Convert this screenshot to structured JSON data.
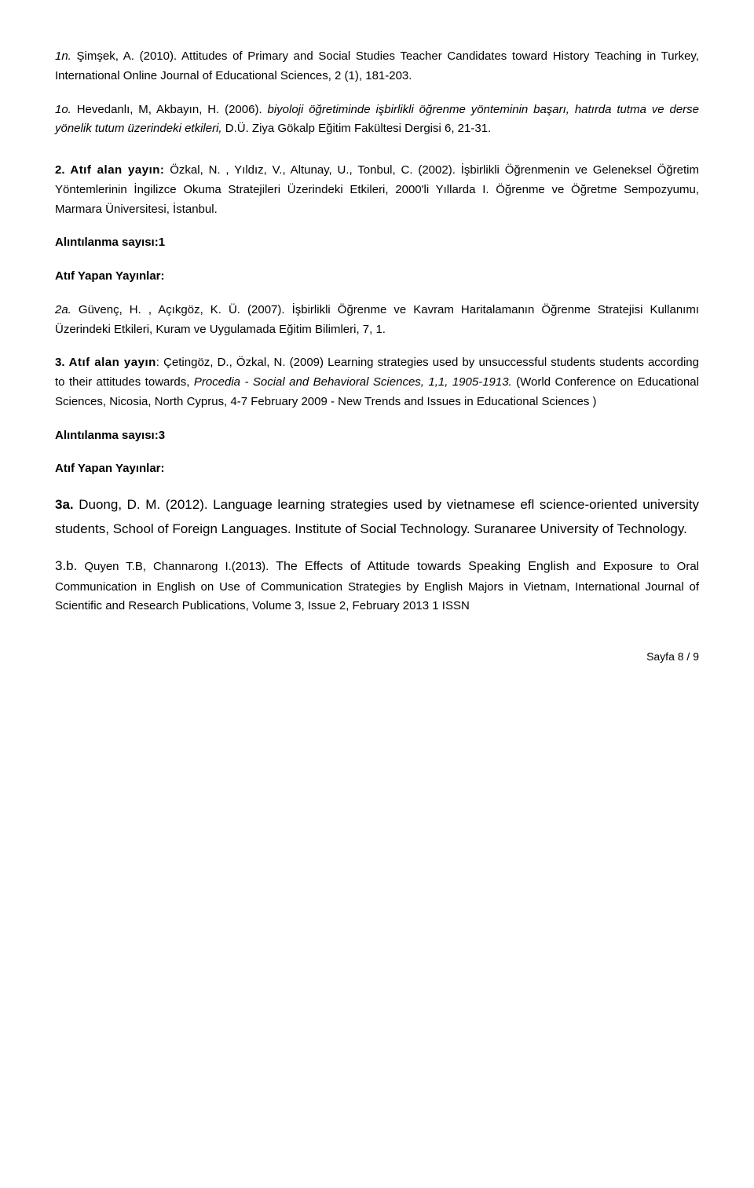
{
  "p1": {
    "prefix_italic": "1n.",
    "text": " Şimşek, A. (2010). Attitudes of Primary and Social Studies Teacher Candidates toward History Teaching in Turkey, International Online Journal of Educational Sciences, 2 (1), 181-203."
  },
  "p2": {
    "prefix_italic": "1o.",
    "part1": " Hevedanlı, M, Akbayın, H. (2006). ",
    "part2_italic": "biyoloji öğretiminde işbirlikli öğrenme yönteminin başarı, hatırda tutma ve derse yönelik tutum üzerindeki etkileri,",
    "part3": " D.Ü. Ziya Gökalp Eğitim Fakültesi Dergisi 6, 21-31."
  },
  "p3": {
    "num_bold": "2.",
    "label_bold": "Atıf alan yayın:",
    "text": " Özkal, N. , Yıldız, V., Altunay, U., Tonbul, C. (2002). İşbirlikli Öğrenmenin ve Geleneksel Öğretim Yöntemlerinin İngilizce Okuma Stratejileri Üzerindeki Etkileri, 2000'li Yıllarda I. Öğrenme ve Öğretme Sempozyumu, Marmara Üniversitesi, İstanbul."
  },
  "alinti1": "Alıntılanma sayısı:1",
  "atif_yapan1": "Atıf Yapan Yayınlar:",
  "p4": {
    "prefix_italic": "2a.",
    "text": " Güvenç, H. , Açıkgöz, K. Ü. (2007). İşbirlikli Öğrenme ve Kavram Haritalamanın Öğrenme Stratejisi Kullanımı Üzerindeki Etkileri, Kuram ve Uygulamada Eğitim Bilimleri, 7, 1."
  },
  "p5": {
    "num_bold": "3.",
    "label_bold": "Atıf alan yayın",
    "part1": ": Çetingöz, D., Özkal, N. (2009) Learning strategies used by unsuccessful students students according to their attitudes towards, ",
    "part2_italic": "Procedia - Social and Behavioral Sciences, 1,1, 1905-1913.",
    "part3": " (World Conference on Educational Sciences, Nicosia, North Cyprus, 4-7 February 2009 - New Trends and Issues in Educational Sciences )"
  },
  "alinti3": "Alıntılanma sayısı:3",
  "atif_yapan2": "Atıf Yapan Yayınlar:",
  "p6": {
    "prefix_bold": "3a.",
    "text": " Duong, D. M. (2012). Language learning strategies used by vietnamese efl science-oriented university students, School of Foreign Languages. Institute of Social Technology. Suranaree University of Technology."
  },
  "p7": {
    "prefix": "3.b.",
    "author": "Quyen T.B, Channarong I.(2013).",
    "mid": "  The Effects of Attitude towards Speaking English ",
    "rest": "and Exposure to Oral Communication in English on Use of Communication Strategies by English Majors in Vietnam, International Journal of Scientific and Research Publications, Volume 3, Issue 2, February 2013 1 ISSN"
  },
  "footer": "Sayfa 8 / 9"
}
